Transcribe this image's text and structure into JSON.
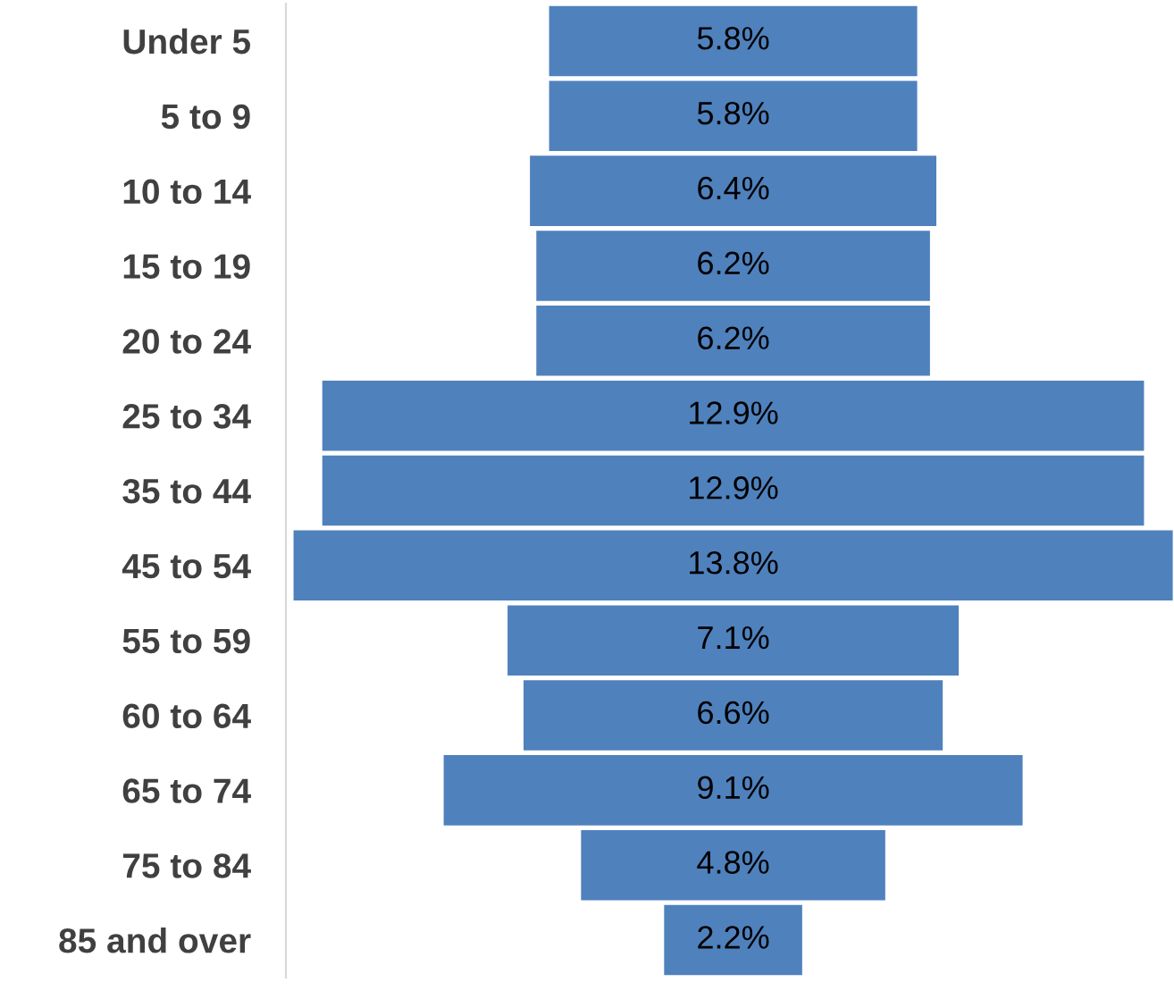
{
  "chart_data": {
    "type": "other",
    "categories": [
      "Under 5",
      "5 to 9",
      "10 to 14",
      "15 to 19",
      "20 to 24",
      "25 to 34",
      "35 to 44",
      "45 to 54",
      "55 to 59",
      "60 to 64",
      "65 to 74",
      "75 to 84",
      "85 and over"
    ],
    "values": [
      5.8,
      5.8,
      6.4,
      6.2,
      6.2,
      12.9,
      12.9,
      13.8,
      7.1,
      6.6,
      9.1,
      4.8,
      2.2
    ],
    "value_labels": [
      "5.8%",
      "5.8%",
      "6.4%",
      "6.2%",
      "6.2%",
      "12.9%",
      "12.9%",
      "13.8%",
      "7.1%",
      "6.6%",
      "9.1%",
      "4.8%",
      "2.2%"
    ],
    "color": "#4f81bd"
  }
}
